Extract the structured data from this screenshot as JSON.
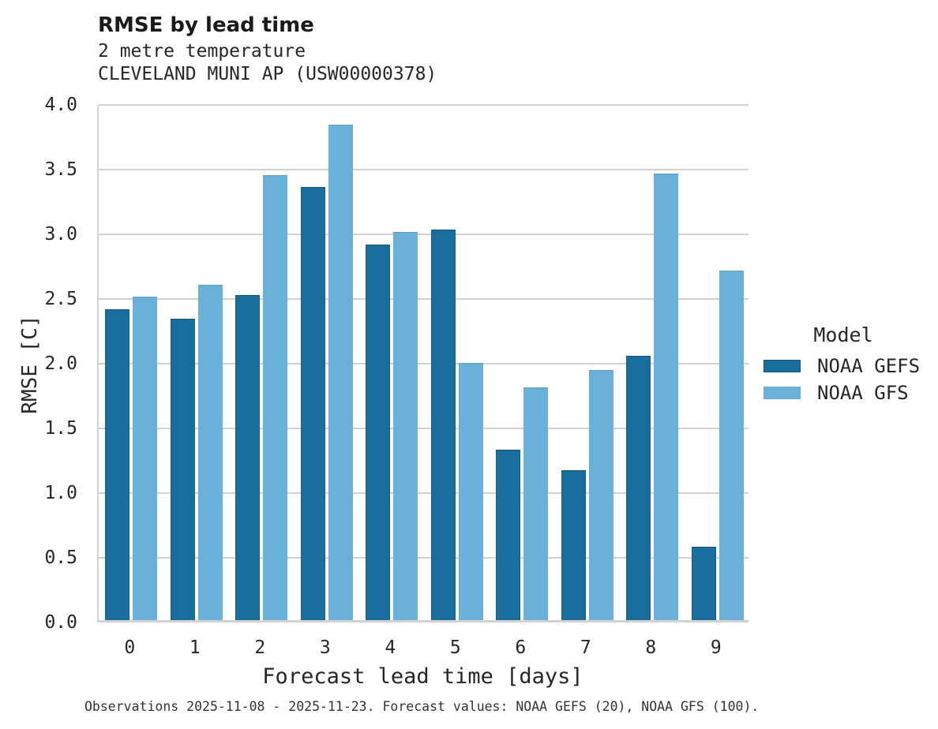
{
  "title": "RMSE by lead time",
  "subtitle_line1": "2 metre temperature",
  "subtitle_line2": "CLEVELAND MUNI AP (USW00000378)",
  "footer": "Observations 2025-11-08 - 2025-11-23. Forecast values: NOAA GEFS (20), NOAA GFS (100).",
  "colors": {
    "noaa_gefs": "#1A6E9E",
    "noaa_gfs": "#6AB1D9",
    "grid": "#d2d2d2",
    "text": "#262626"
  },
  "legend": {
    "title": "Model",
    "entries": [
      {
        "label": "NOAA GEFS",
        "color": "#1A6E9E"
      },
      {
        "label": "NOAA GFS",
        "color": "#6AB1D9"
      }
    ]
  },
  "chart_data": {
    "type": "bar",
    "title": "RMSE by lead time",
    "subtitle": [
      "2 metre temperature",
      "CLEVELAND MUNI AP (USW00000378)"
    ],
    "xlabel": "Forecast lead time [days]",
    "ylabel": "RMSE [C]",
    "categories": [
      "0",
      "1",
      "2",
      "3",
      "4",
      "5",
      "6",
      "7",
      "8",
      "9"
    ],
    "series": [
      {
        "name": "NOAA GEFS",
        "color": "#1A6E9E",
        "values": [
          2.4,
          2.33,
          2.51,
          3.35,
          2.9,
          3.02,
          1.32,
          1.16,
          2.04,
          0.57
        ]
      },
      {
        "name": "NOAA GFS",
        "color": "#6AB1D9",
        "values": [
          2.5,
          2.59,
          3.44,
          3.83,
          3.0,
          1.99,
          1.8,
          1.93,
          3.45,
          2.7
        ]
      }
    ],
    "ylim": [
      0.0,
      4.0
    ],
    "yticks": [
      0.0,
      0.5,
      1.0,
      1.5,
      2.0,
      2.5,
      3.0,
      3.5,
      4.0
    ],
    "grid": true,
    "legend_position": "right",
    "footnote": "Observations 2025-11-08 - 2025-11-23. Forecast values: NOAA GEFS (20), NOAA GFS (100)."
  }
}
